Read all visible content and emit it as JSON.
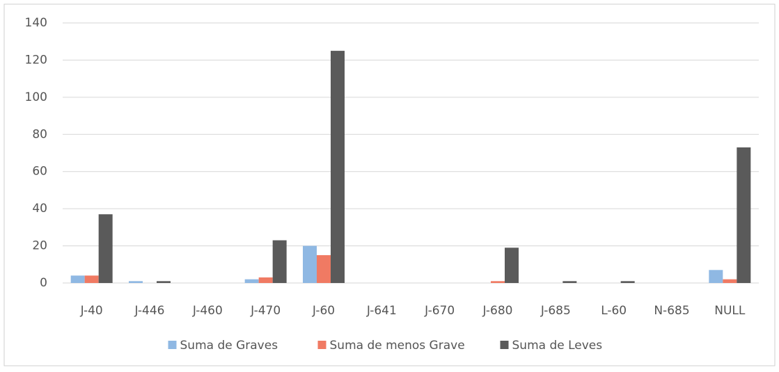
{
  "chart_data": {
    "type": "bar",
    "categories": [
      "J-40",
      "J-446",
      "J-460",
      "J-470",
      "J-60",
      "J-641",
      "J-670",
      "J-680",
      "J-685",
      "L-60",
      "N-685",
      "NULL"
    ],
    "series": [
      {
        "name": "Suma de Graves",
        "color": "#8fb8e3",
        "values": [
          4,
          1,
          0,
          2,
          20,
          0,
          0,
          0,
          0,
          0,
          0,
          7
        ]
      },
      {
        "name": "Suma de menos Grave",
        "color": "#f07a63",
        "values": [
          4,
          0,
          0,
          3,
          15,
          0,
          0,
          1,
          0,
          0,
          0,
          2
        ]
      },
      {
        "name": "Suma de Leves",
        "color": "#5a5a5a",
        "values": [
          37,
          1,
          0,
          23,
          125,
          0,
          0,
          19,
          1,
          1,
          0,
          73
        ]
      }
    ],
    "ylim": [
      0,
      140
    ],
    "yticks": [
      0,
      20,
      40,
      60,
      80,
      100,
      120,
      140
    ],
    "grid": true,
    "legend": "bottom"
  }
}
